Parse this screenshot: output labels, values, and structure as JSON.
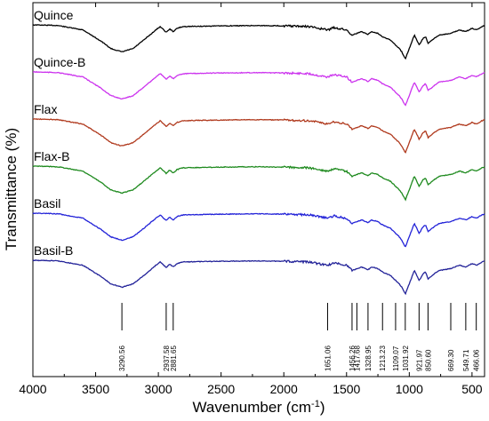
{
  "chart_data": {
    "type": "line",
    "xlabel": "Wavenumber (cm⁻¹)",
    "ylabel": "Transmittance (%)",
    "xlim": [
      4000,
      400
    ],
    "x_ticks": [
      4000,
      3500,
      3000,
      2500,
      2000,
      1500,
      1000,
      500
    ],
    "grid": false,
    "legend": "labels printed above each trace, top-left",
    "series": [
      {
        "name": "Quince",
        "color": "#000000",
        "offset": 0
      },
      {
        "name": "Quince-B",
        "color": "#cc33ee",
        "offset": 1
      },
      {
        "name": "Flax",
        "color": "#b03a1e",
        "offset": 2
      },
      {
        "name": "Flax-B",
        "color": "#1e8a1e",
        "offset": 3
      },
      {
        "name": "Basil",
        "color": "#2323d8",
        "offset": 4
      },
      {
        "name": "Basil-B",
        "color": "#232399",
        "offset": 5
      }
    ],
    "profile_x": [
      4000,
      3800,
      3600,
      3450,
      3380,
      3290,
      3200,
      3100,
      3020,
      2985,
      2937,
      2910,
      2881,
      2850,
      2800,
      2500,
      2200,
      2000,
      1800,
      1651,
      1600,
      1500,
      1456,
      1417,
      1380,
      1328,
      1300,
      1250,
      1213,
      1180,
      1150,
      1109,
      1080,
      1060,
      1031,
      1000,
      960,
      921,
      890,
      870,
      850,
      800,
      760,
      669,
      600,
      549,
      500,
      466,
      420,
      400
    ],
    "profile_depth": [
      0,
      0.02,
      0.15,
      0.5,
      0.7,
      0.8,
      0.7,
      0.4,
      0.15,
      0.05,
      0.22,
      0.12,
      0.2,
      0.1,
      0.05,
      0.03,
      0.02,
      0.03,
      0.05,
      0.15,
      0.08,
      0.15,
      0.3,
      0.25,
      0.2,
      0.28,
      0.2,
      0.25,
      0.35,
      0.4,
      0.45,
      0.6,
      0.7,
      0.8,
      1.0,
      0.7,
      0.3,
      0.6,
      0.4,
      0.35,
      0.55,
      0.4,
      0.3,
      0.25,
      0.15,
      0.2,
      0.1,
      0.15,
      0.05,
      0.02
    ],
    "peaks": [
      {
        "x": 3290.56,
        "label": "3290.56"
      },
      {
        "x": 2937.58,
        "label": "2937.58"
      },
      {
        "x": 2881.65,
        "label": "2881.65"
      },
      {
        "x": 1651.06,
        "label": "1651.06"
      },
      {
        "x": 1456.26,
        "label": "1456.26"
      },
      {
        "x": 1417.68,
        "label": "1417.68"
      },
      {
        "x": 1328.95,
        "label": "1328.95"
      },
      {
        "x": 1213.23,
        "label": "1213.23"
      },
      {
        "x": 1109.07,
        "label": "1109.07"
      },
      {
        "x": 1031.92,
        "label": "1031.92"
      },
      {
        "x": 921.97,
        "label": "921.97"
      },
      {
        "x": 850.6,
        "label": "850.60"
      },
      {
        "x": 669.3,
        "label": "669.30"
      },
      {
        "x": 549.71,
        "label": "549.71"
      },
      {
        "x": 466.06,
        "label": "466.06"
      }
    ]
  }
}
